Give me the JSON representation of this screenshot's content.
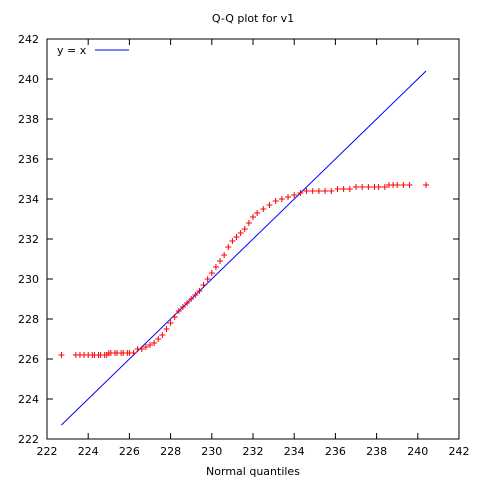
{
  "chart_data": {
    "type": "scatter",
    "title": "Q-Q plot for v1",
    "xlabel": "Normal quantiles",
    "ylabel": "",
    "xlim": [
      222,
      242
    ],
    "ylim": [
      222,
      242
    ],
    "xticks": [
      "222",
      "224",
      "226",
      "228",
      "230",
      "232",
      "234",
      "236",
      "238",
      "240",
      "242"
    ],
    "yticks": [
      "222",
      "224",
      "226",
      "228",
      "230",
      "232",
      "234",
      "236",
      "238",
      "240",
      "242"
    ],
    "grid": false,
    "legend": {
      "position": "top-left",
      "entries": [
        "y = x"
      ]
    },
    "reference_line": {
      "name": "y = x",
      "x": [
        222.7,
        240.4
      ],
      "y": [
        222.7,
        240.4
      ],
      "color": "#0000ff"
    },
    "marker_color": "#ff0000",
    "line_color": "#0000ff",
    "points": {
      "x": [
        222.7,
        223.4,
        223.6,
        223.8,
        224.0,
        224.2,
        224.3,
        224.5,
        224.6,
        224.8,
        224.9,
        225.0,
        225.1,
        225.3,
        225.4,
        225.6,
        225.7,
        225.9,
        226.0,
        226.2,
        226.4,
        226.6,
        226.8,
        227.0,
        227.2,
        227.4,
        227.6,
        227.8,
        228.0,
        228.2,
        228.4,
        228.6,
        228.8,
        229.0,
        229.2,
        229.4,
        229.6,
        229.8,
        230.0,
        230.2,
        230.4,
        230.6,
        230.8,
        231.0,
        231.2,
        231.4,
        231.6,
        231.8,
        232.0,
        232.2,
        232.5,
        232.8,
        233.1,
        233.4,
        233.7,
        234.0,
        234.3,
        234.6,
        234.9,
        235.2,
        235.5,
        235.8,
        236.1,
        236.4,
        236.7,
        237.0,
        237.3,
        237.6,
        237.9,
        238.1,
        238.4,
        238.6,
        238.8,
        239.0,
        239.3,
        239.6,
        240.4
      ],
      "y": [
        226.2,
        226.2,
        226.2,
        226.2,
        226.2,
        226.2,
        226.2,
        226.2,
        226.2,
        226.2,
        226.2,
        226.3,
        226.3,
        226.3,
        226.3,
        226.3,
        226.3,
        226.3,
        226.3,
        226.3,
        226.5,
        226.5,
        226.6,
        226.7,
        226.8,
        227.0,
        227.2,
        227.5,
        227.8,
        228.1,
        228.4,
        228.6,
        228.8,
        229.0,
        229.2,
        229.4,
        229.7,
        230.0,
        230.3,
        230.6,
        230.9,
        231.2,
        231.6,
        231.9,
        232.1,
        232.3,
        232.5,
        232.8,
        233.1,
        233.3,
        233.5,
        233.7,
        233.9,
        234.0,
        234.1,
        234.2,
        234.3,
        234.4,
        234.4,
        234.4,
        234.4,
        234.4,
        234.5,
        234.5,
        234.5,
        234.6,
        234.6,
        234.6,
        234.6,
        234.6,
        234.6,
        234.7,
        234.7,
        234.7,
        234.7,
        234.7,
        234.7
      ]
    }
  }
}
